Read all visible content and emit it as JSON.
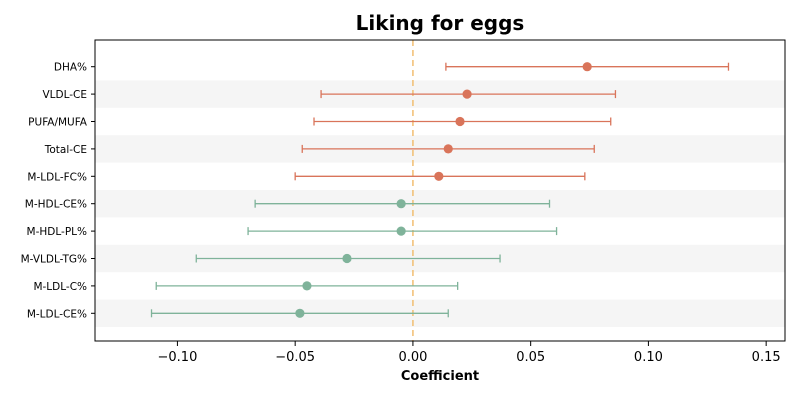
{
  "chart_data": {
    "type": "forest",
    "title": "Liking for eggs",
    "xlabel": "Coefficient",
    "ylabel": "",
    "xlim": [
      -0.135,
      0.158
    ],
    "xticks": [
      -0.1,
      -0.05,
      0.0,
      0.05,
      0.1,
      0.15
    ],
    "xtick_labels": [
      "−0.10",
      "−0.05",
      "0.00",
      "0.05",
      "0.10",
      "0.15"
    ],
    "reference_line": 0.0,
    "alternating_row_shading": true,
    "colors": {
      "positive": "#d9745a",
      "negative": "#7fb39a",
      "reference_line": "#f2c27a",
      "row_shade": "#f5f5f5"
    },
    "rows": [
      {
        "label": "DHA%",
        "estimate": 0.074,
        "ci_low": 0.014,
        "ci_high": 0.134
      },
      {
        "label": "VLDL-CE",
        "estimate": 0.023,
        "ci_low": -0.039,
        "ci_high": 0.086
      },
      {
        "label": "PUFA/MUFA",
        "estimate": 0.02,
        "ci_low": -0.042,
        "ci_high": 0.084
      },
      {
        "label": "Total-CE",
        "estimate": 0.015,
        "ci_low": -0.047,
        "ci_high": 0.077
      },
      {
        "label": "M-LDL-FC%",
        "estimate": 0.011,
        "ci_low": -0.05,
        "ci_high": 0.073
      },
      {
        "label": "M-HDL-CE%",
        "estimate": -0.005,
        "ci_low": -0.067,
        "ci_high": 0.058
      },
      {
        "label": "M-HDL-PL%",
        "estimate": -0.005,
        "ci_low": -0.07,
        "ci_high": 0.061
      },
      {
        "label": "M-VLDL-TG%",
        "estimate": -0.028,
        "ci_low": -0.092,
        "ci_high": 0.037
      },
      {
        "label": "M-LDL-C%",
        "estimate": -0.045,
        "ci_low": -0.109,
        "ci_high": 0.019
      },
      {
        "label": "M-LDL-CE%",
        "estimate": -0.048,
        "ci_low": -0.111,
        "ci_high": 0.015
      }
    ]
  }
}
